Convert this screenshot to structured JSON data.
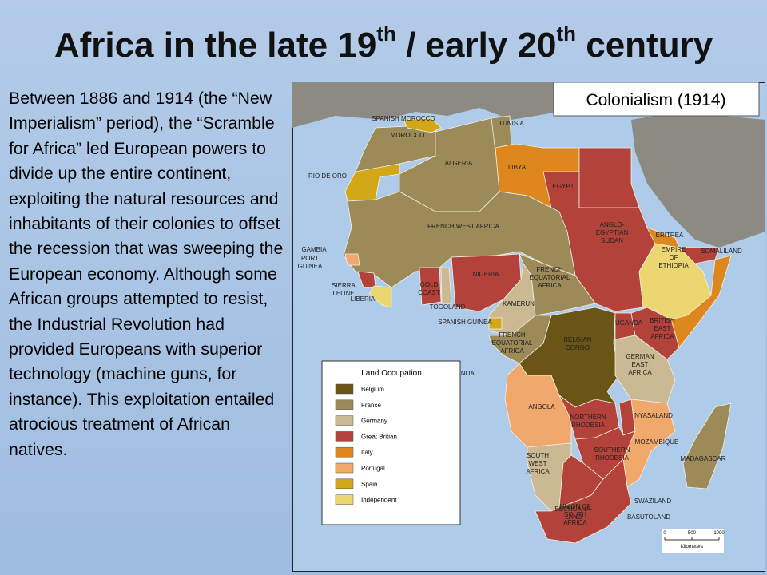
{
  "slide": {
    "title": [
      "Africa in the late 19",
      "th",
      " / early 20",
      "th",
      " century"
    ],
    "body": "Between 1886 and 1914 (the “New Imperialism” period), the “Scramble for Africa” led European powers to divide up the entire continent, exploiting the natural resources and inhabitants of their colonies to offset the recession that was sweeping the European economy. Although some African groups attempted to resist, the Industrial Revolution had provided Europeans with superior technology (machine guns, for instance). This exploitation entailed atrocious treatment of African natives."
  },
  "map": {
    "title": "Colonialism (1914)",
    "labels": [
      [
        "SPANISH MOROCCO"
      ],
      [
        "MOROCCO"
      ],
      [
        "TUNISIA"
      ],
      [
        "ALGERIA"
      ],
      [
        "LIBYA"
      ],
      [
        "EGYPT"
      ],
      [
        "RIO DE ORO"
      ],
      [
        "FRENCH WEST AFRICA"
      ],
      [
        "ANGLO-",
        "EGYPTIAN",
        "SUDAN"
      ],
      [
        "ERITREA"
      ],
      [
        "SOMALILAND"
      ],
      [
        "EMPIRE",
        "OF",
        "ETHIOPIA"
      ],
      [
        "GAMBIA"
      ],
      [
        "PORT",
        "GUINEA"
      ],
      [
        "SIERRA",
        "LEONE"
      ],
      [
        "LIBERIA"
      ],
      [
        "GOLD",
        "COAST"
      ],
      [
        "TOGOLAND"
      ],
      [
        "NIGERIA"
      ],
      [
        "FRENCH",
        "EQUATORIAL",
        "AFRICA"
      ],
      [
        "KAMERUN"
      ],
      [
        "SPANISH GUINEA"
      ],
      [
        "FRENCH",
        "EQUATORIAL",
        "AFRICA"
      ],
      [
        "UGANDA"
      ],
      [
        "BRITISH",
        "EAST",
        "AFRICA"
      ],
      [
        "BELGIAN",
        "CONGO"
      ],
      [
        "CABINDA"
      ],
      [
        "GERMAN",
        "EAST",
        "AFRICA"
      ],
      [
        "ANGOLA"
      ],
      [
        "NORTHERN",
        "RHODESIA"
      ],
      [
        "NYASALAND"
      ],
      [
        "MOZAMBIQUE"
      ],
      [
        "SOUTHERN",
        "RHODESIA"
      ],
      [
        "SOUTH",
        "WEST",
        "AFRICA"
      ],
      [
        "BECHUANA-",
        "LAND"
      ],
      [
        "MADAGASCAR"
      ],
      [
        "SWAZILAND"
      ],
      [
        "BASUTOLAND"
      ],
      [
        "UNION OF",
        "SOUTH",
        "AFRICA"
      ]
    ],
    "legend": {
      "title": "Land Occupation",
      "items": [
        {
          "label": "Belgium",
          "color": "#6b5516"
        },
        {
          "label": "France",
          "color": "#9c8a58"
        },
        {
          "label": "Germany",
          "color": "#cbb993"
        },
        {
          "label": "Great Britian",
          "color": "#b3433a"
        },
        {
          "label": "Italy",
          "color": "#df871f"
        },
        {
          "label": "Portugal",
          "color": "#f1a86c"
        },
        {
          "label": "Spain",
          "color": "#d2a819"
        },
        {
          "label": "Independent",
          "color": "#ecd672"
        }
      ]
    },
    "scale": {
      "ticks": [
        "0",
        "500",
        "1000"
      ],
      "unit": "Kilometers"
    }
  }
}
